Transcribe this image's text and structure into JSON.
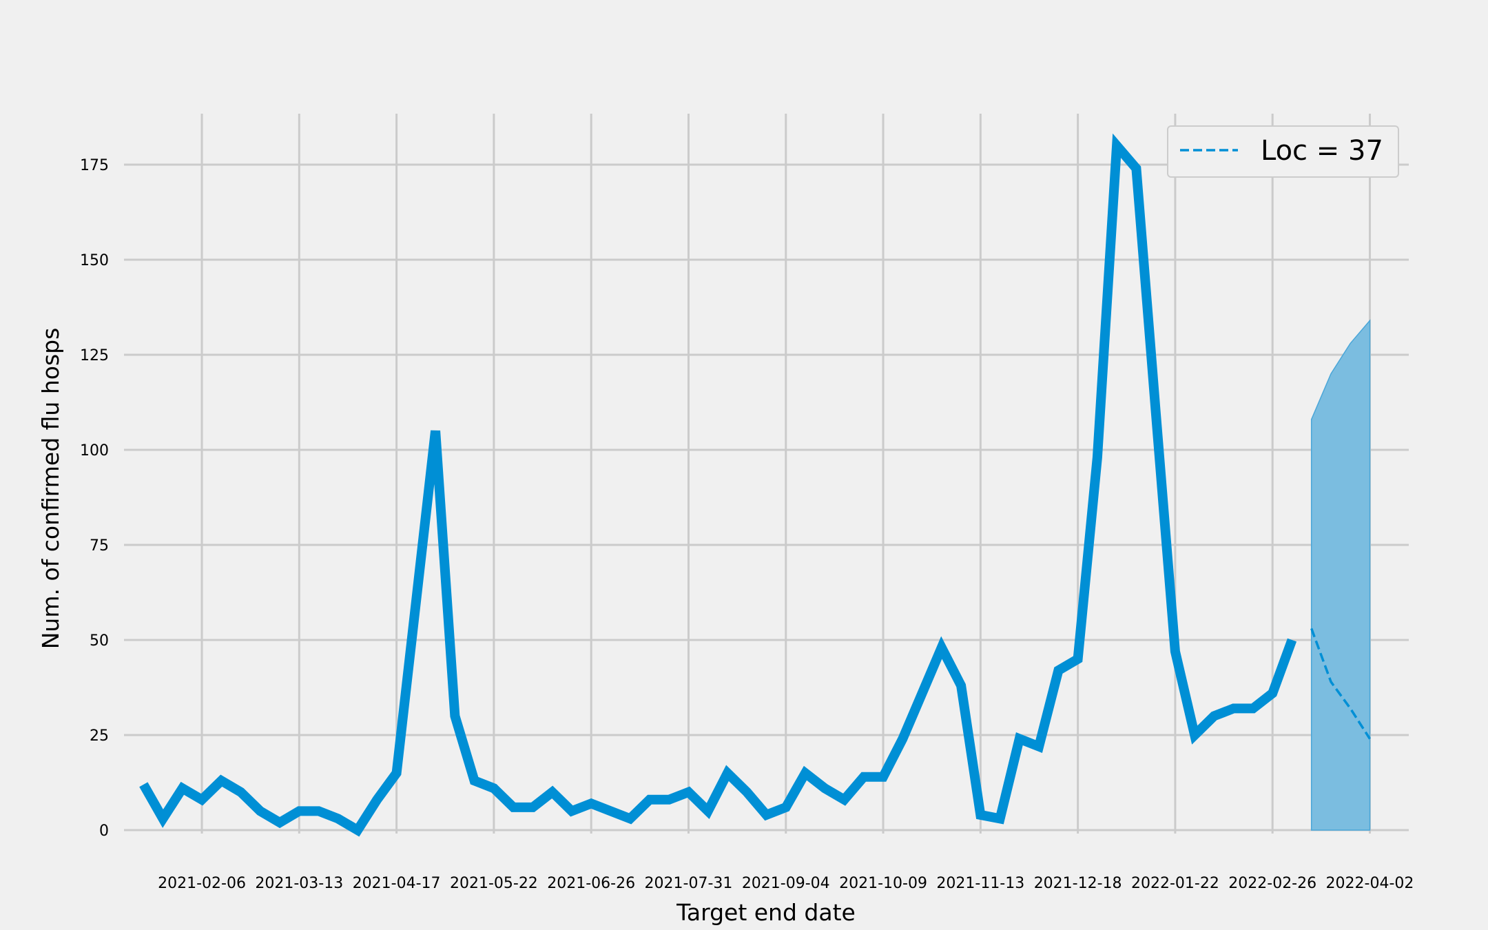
{
  "chart_data": {
    "type": "line",
    "xlabel": "Target end date",
    "ylabel": "Num. of confirmed flu hosps",
    "x_tick_labels": [
      "2021-02-06",
      "2021-03-13",
      "2021-04-17",
      "2021-05-22",
      "2021-06-26",
      "2021-07-31",
      "2021-09-04",
      "2021-10-09",
      "2021-11-13",
      "2021-12-18",
      "2022-01-22",
      "2022-02-26",
      "2022-04-02"
    ],
    "y_ticks": [
      0,
      25,
      50,
      75,
      100,
      125,
      150,
      175
    ],
    "y_tick_labels": [
      "0",
      "25",
      "50",
      "75",
      "100",
      "125",
      "150",
      "175"
    ],
    "ylim": [
      -2,
      188
    ],
    "xlim": [
      "2021-01-09",
      "2022-04-16"
    ],
    "grid": true,
    "legend_position": "top-right",
    "colors": {
      "observed": "#008fd5",
      "forecast": "#008fd5",
      "interval": "#7bbde0",
      "grid": "#cbcbcb",
      "background": "#f0f0f0"
    },
    "series": [
      {
        "style": "solid",
        "x": [
          "2021-01-16",
          "2021-01-23",
          "2021-01-30",
          "2021-02-06",
          "2021-02-13",
          "2021-02-20",
          "2021-02-27",
          "2021-03-06",
          "2021-03-13",
          "2021-03-20",
          "2021-03-27",
          "2021-04-03",
          "2021-04-10",
          "2021-04-17",
          "2021-04-24",
          "2021-05-01",
          "2021-05-08",
          "2021-05-15",
          "2021-05-22",
          "2021-05-29",
          "2021-06-05",
          "2021-06-12",
          "2021-06-19",
          "2021-06-26",
          "2021-07-03",
          "2021-07-10",
          "2021-07-17",
          "2021-07-24",
          "2021-07-31",
          "2021-08-07",
          "2021-08-14",
          "2021-08-21",
          "2021-08-28",
          "2021-09-04",
          "2021-09-11",
          "2021-09-18",
          "2021-09-25",
          "2021-10-02",
          "2021-10-09",
          "2021-10-16",
          "2021-10-23",
          "2021-10-30",
          "2021-11-06",
          "2021-11-13",
          "2021-11-20",
          "2021-11-27",
          "2021-12-04",
          "2021-12-11",
          "2021-12-18",
          "2021-12-25",
          "2022-01-01",
          "2022-01-08",
          "2022-01-15",
          "2022-01-22",
          "2022-01-29",
          "2022-02-05",
          "2022-02-12",
          "2022-02-19",
          "2022-02-26",
          "2022-03-05"
        ],
        "values": [
          12,
          3,
          11,
          8,
          13,
          10,
          5,
          2,
          5,
          5,
          3,
          0,
          8,
          15,
          60,
          105,
          30,
          13,
          11,
          6,
          6,
          10,
          5,
          7,
          5,
          3,
          8,
          8,
          10,
          5,
          15,
          10,
          4,
          6,
          15,
          11,
          8,
          14,
          14,
          24,
          36,
          48,
          38,
          4,
          3,
          24,
          22,
          42,
          45,
          98,
          180,
          174,
          110,
          47,
          25,
          30,
          32,
          32,
          36,
          50
        ]
      },
      {
        "name": "Loc = 37",
        "style": "dashed",
        "x": [
          "2022-03-12",
          "2022-03-19",
          "2022-03-26",
          "2022-04-02"
        ],
        "values": [
          53,
          39,
          32,
          24
        ]
      }
    ],
    "interval": {
      "x": [
        "2022-03-12",
        "2022-03-19",
        "2022-03-26",
        "2022-04-02"
      ],
      "lower": [
        0,
        0,
        0,
        0
      ],
      "upper": [
        108,
        120,
        128,
        134
      ]
    }
  }
}
